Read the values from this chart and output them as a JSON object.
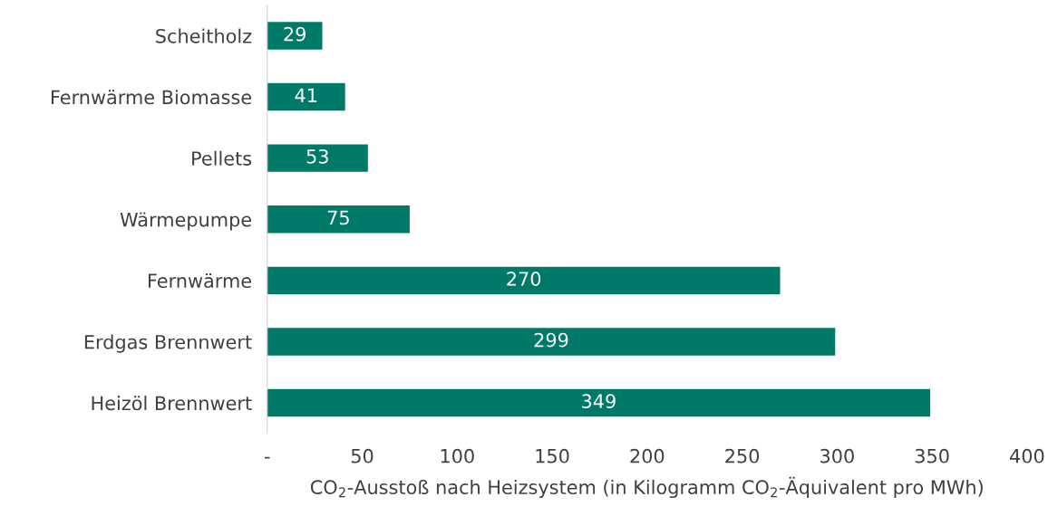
{
  "chart_data": {
    "type": "bar",
    "orientation": "horizontal",
    "categories": [
      "Scheitholz",
      "Fernwärme Biomasse",
      "Pellets",
      "Wärmepumpe",
      "Fernwärme",
      "Erdgas Brennwert",
      "Heizöl Brennwert"
    ],
    "values": [
      29,
      41,
      53,
      75,
      270,
      299,
      349
    ],
    "color": "#007a68",
    "xlabel": "CO$_{2}$-Ausstoß nach Heizsystem (in Kilogramm CO$_{2}$-Äquivalent pro MWh)",
    "xlim": [
      0,
      400
    ],
    "xticks": [
      {
        "value": 0,
        "label": "-"
      },
      50,
      100,
      150,
      200,
      250,
      300,
      350,
      400
    ],
    "data_labels": true,
    "grid": false,
    "legend": false
  }
}
